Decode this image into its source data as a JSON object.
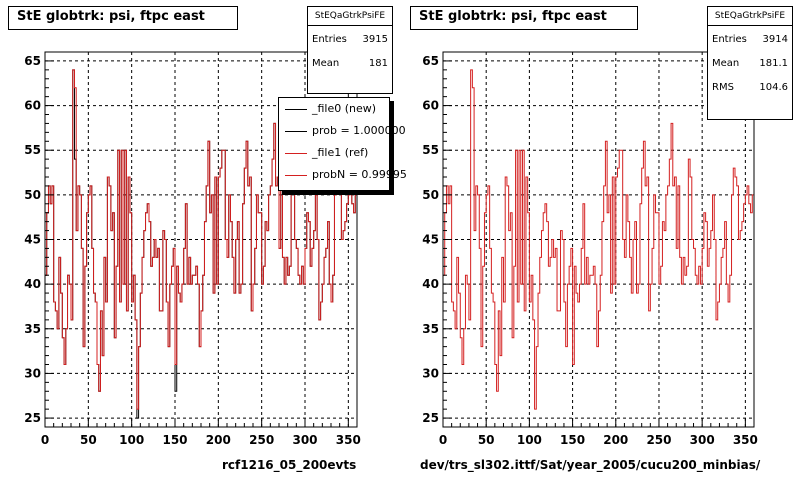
{
  "chart_data": [
    {
      "type": "line",
      "title": "StE globtrk: psi, ftpc east",
      "xlabel": "",
      "ylabel": "",
      "xlim": [
        0,
        360
      ],
      "ylim": [
        24,
        66
      ],
      "xticks": [
        0,
        50,
        100,
        150,
        200,
        250,
        300,
        350
      ],
      "yticks": [
        25,
        30,
        35,
        40,
        45,
        50,
        55,
        60,
        65
      ],
      "grid": true,
      "stats": {
        "name": "StEQaGtrkPsiFE",
        "entries_label": "Entries",
        "entries": "3915",
        "mean_label": "Mean",
        "mean": "181"
      },
      "legend": {
        "placement": "top-right",
        "entries": [
          {
            "label": "_file0 (new)",
            "color": "#000000"
          },
          {
            "label": "prob = 1.000000",
            "color": "#000000"
          },
          {
            "label": "_file1 (ref)",
            "color": "#d42020"
          },
          {
            "label": "probN = 0.99995",
            "color": "#d42020"
          }
        ]
      },
      "footer": "rcf1216_05_200evts",
      "series": [
        {
          "name": "_file0 (new)",
          "color": "#000000",
          "values": [
            41,
            48,
            51,
            49,
            51,
            38,
            37,
            35,
            43,
            39,
            34,
            31,
            35,
            41,
            40,
            36,
            64,
            54,
            46,
            51,
            50,
            44,
            33,
            42,
            48,
            50,
            51,
            44,
            39,
            38,
            31,
            28,
            37,
            32,
            43,
            38,
            52,
            51,
            46,
            48,
            34,
            42,
            55,
            38,
            55,
            40,
            55,
            37,
            52,
            48,
            38,
            41,
            36,
            25,
            33,
            39,
            43,
            46,
            48,
            49,
            47,
            42,
            43,
            45,
            43,
            44,
            37,
            37,
            46,
            45,
            38,
            33,
            40,
            42,
            44,
            28,
            42,
            39,
            38,
            40,
            44,
            49,
            40,
            43,
            40,
            41,
            41,
            42,
            40,
            33,
            37,
            41,
            47,
            51,
            56,
            48,
            50,
            39,
            52,
            40,
            52,
            53,
            55,
            55,
            45,
            43,
            50,
            47,
            43,
            39,
            45,
            47,
            39,
            40,
            49,
            53,
            56,
            51,
            52,
            37,
            40,
            44,
            50,
            48,
            48,
            40,
            42,
            47,
            46,
            50,
            51,
            54,
            58,
            51,
            52,
            44,
            51,
            43,
            40,
            43,
            41,
            42,
            54,
            52,
            45,
            44,
            41,
            40,
            42,
            40,
            44,
            48,
            47,
            42,
            44,
            46,
            50,
            45,
            36,
            38,
            40,
            43,
            44,
            47,
            40,
            38,
            41,
            50,
            53,
            52,
            51,
            45,
            46,
            47,
            49,
            50,
            51,
            49,
            48,
            50
          ]
        },
        {
          "name": "_file1 (ref)",
          "color": "#d42020",
          "values": [
            41,
            48,
            51,
            49,
            51,
            38,
            37,
            35,
            43,
            39,
            34,
            31,
            35,
            41,
            40,
            36,
            64,
            62,
            46,
            51,
            50,
            44,
            33,
            42,
            48,
            50,
            51,
            44,
            39,
            38,
            31,
            28,
            37,
            32,
            43,
            38,
            52,
            51,
            46,
            48,
            34,
            42,
            55,
            38,
            55,
            40,
            55,
            37,
            52,
            48,
            38,
            41,
            36,
            26,
            33,
            39,
            43,
            46,
            48,
            49,
            47,
            42,
            43,
            45,
            43,
            44,
            37,
            37,
            46,
            45,
            38,
            33,
            40,
            42,
            44,
            31,
            42,
            39,
            38,
            40,
            44,
            49,
            40,
            43,
            40,
            41,
            41,
            42,
            40,
            33,
            37,
            41,
            47,
            51,
            56,
            48,
            50,
            39,
            52,
            40,
            52,
            53,
            55,
            55,
            45,
            43,
            50,
            47,
            43,
            39,
            45,
            47,
            39,
            40,
            49,
            53,
            56,
            51,
            52,
            37,
            40,
            44,
            50,
            48,
            48,
            40,
            42,
            47,
            46,
            50,
            51,
            54,
            58,
            51,
            52,
            44,
            51,
            43,
            40,
            43,
            41,
            42,
            54,
            52,
            45,
            44,
            41,
            40,
            42,
            40,
            44,
            48,
            47,
            42,
            44,
            46,
            50,
            45,
            36,
            38,
            40,
            43,
            44,
            47,
            40,
            38,
            41,
            50,
            53,
            52,
            51,
            45,
            46,
            47,
            49,
            50,
            51,
            49,
            48,
            50
          ]
        }
      ]
    },
    {
      "type": "line",
      "title": "StE globtrk: psi, ftpc east",
      "xlabel": "",
      "ylabel": "",
      "xlim": [
        0,
        360
      ],
      "ylim": [
        24,
        66
      ],
      "xticks": [
        0,
        50,
        100,
        150,
        200,
        250,
        300,
        350
      ],
      "yticks": [
        25,
        30,
        35,
        40,
        45,
        50,
        55,
        60,
        65
      ],
      "grid": true,
      "stats": {
        "name": "StEQaGtrkPsiFE",
        "entries_label": "Entries",
        "entries": "3914",
        "mean_label": "Mean",
        "mean": "181.1",
        "rms_label": "RMS",
        "rms": "104.6"
      },
      "footer": "dev/trs_sl302.ittf/Sat/year_2005/cucu200_minbias/",
      "series": [
        {
          "name": "",
          "color": "#d42020",
          "values": [
            41,
            48,
            51,
            49,
            51,
            38,
            37,
            35,
            43,
            39,
            34,
            31,
            35,
            41,
            40,
            36,
            64,
            62,
            46,
            51,
            50,
            44,
            33,
            42,
            48,
            50,
            51,
            44,
            39,
            38,
            31,
            28,
            37,
            32,
            43,
            38,
            52,
            51,
            46,
            48,
            34,
            42,
            55,
            38,
            55,
            40,
            55,
            37,
            52,
            48,
            38,
            41,
            36,
            26,
            33,
            39,
            43,
            46,
            48,
            49,
            47,
            42,
            43,
            45,
            43,
            44,
            37,
            37,
            46,
            45,
            38,
            33,
            40,
            42,
            44,
            31,
            42,
            39,
            38,
            40,
            44,
            49,
            40,
            43,
            40,
            41,
            41,
            42,
            40,
            33,
            37,
            41,
            47,
            51,
            56,
            48,
            50,
            39,
            52,
            40,
            52,
            53,
            55,
            55,
            45,
            43,
            50,
            47,
            43,
            39,
            45,
            47,
            39,
            40,
            49,
            53,
            56,
            51,
            52,
            37,
            40,
            44,
            50,
            48,
            48,
            40,
            42,
            47,
            46,
            50,
            51,
            54,
            58,
            51,
            52,
            44,
            51,
            43,
            40,
            43,
            41,
            42,
            54,
            52,
            45,
            44,
            41,
            40,
            42,
            40,
            44,
            48,
            47,
            42,
            44,
            46,
            50,
            45,
            36,
            38,
            40,
            43,
            44,
            47,
            40,
            38,
            41,
            50,
            53,
            52,
            51,
            45,
            46,
            47,
            49,
            50,
            51,
            49,
            48,
            50
          ]
        }
      ]
    }
  ]
}
